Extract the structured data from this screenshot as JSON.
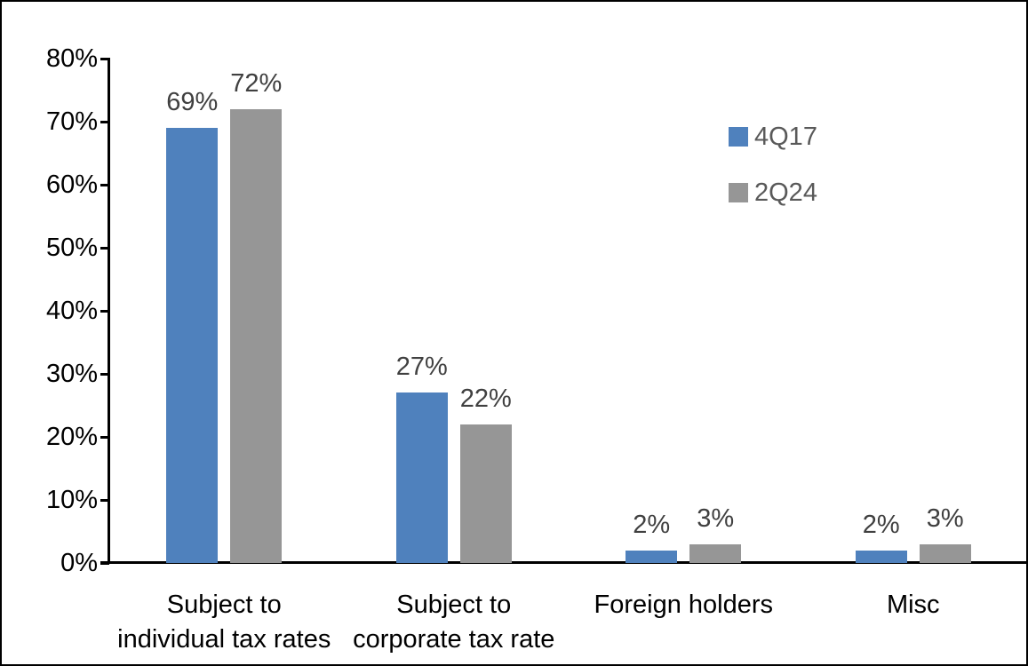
{
  "chart_data": {
    "type": "bar",
    "title": "",
    "xlabel": "",
    "ylabel": "",
    "categories": [
      "Subject to\nindividual tax rates",
      "Subject to\ncorporate tax rate",
      "Foreign holders",
      "Misc"
    ],
    "series": [
      {
        "name": "4Q17",
        "color": "#4F81BD",
        "values": [
          69,
          27,
          2,
          2
        ],
        "data_labels": [
          "69%",
          "27%",
          "2%",
          "2%"
        ]
      },
      {
        "name": "2Q24",
        "color": "#969696",
        "values": [
          72,
          22,
          3,
          3
        ],
        "data_labels": [
          "72%",
          "22%",
          "3%",
          "3%"
        ]
      }
    ],
    "ylim": [
      0,
      80
    ],
    "ytick_step": 10,
    "ytick_labels": [
      "0%",
      "10%",
      "20%",
      "30%",
      "40%",
      "50%",
      "60%",
      "70%",
      "80%"
    ],
    "grid": false,
    "legend_position": "upper-right",
    "colors": {
      "axis": "#000000",
      "data_label": "#404040",
      "legend_text": "#595959",
      "category_text": "#000000",
      "background": "#ffffff"
    }
  }
}
